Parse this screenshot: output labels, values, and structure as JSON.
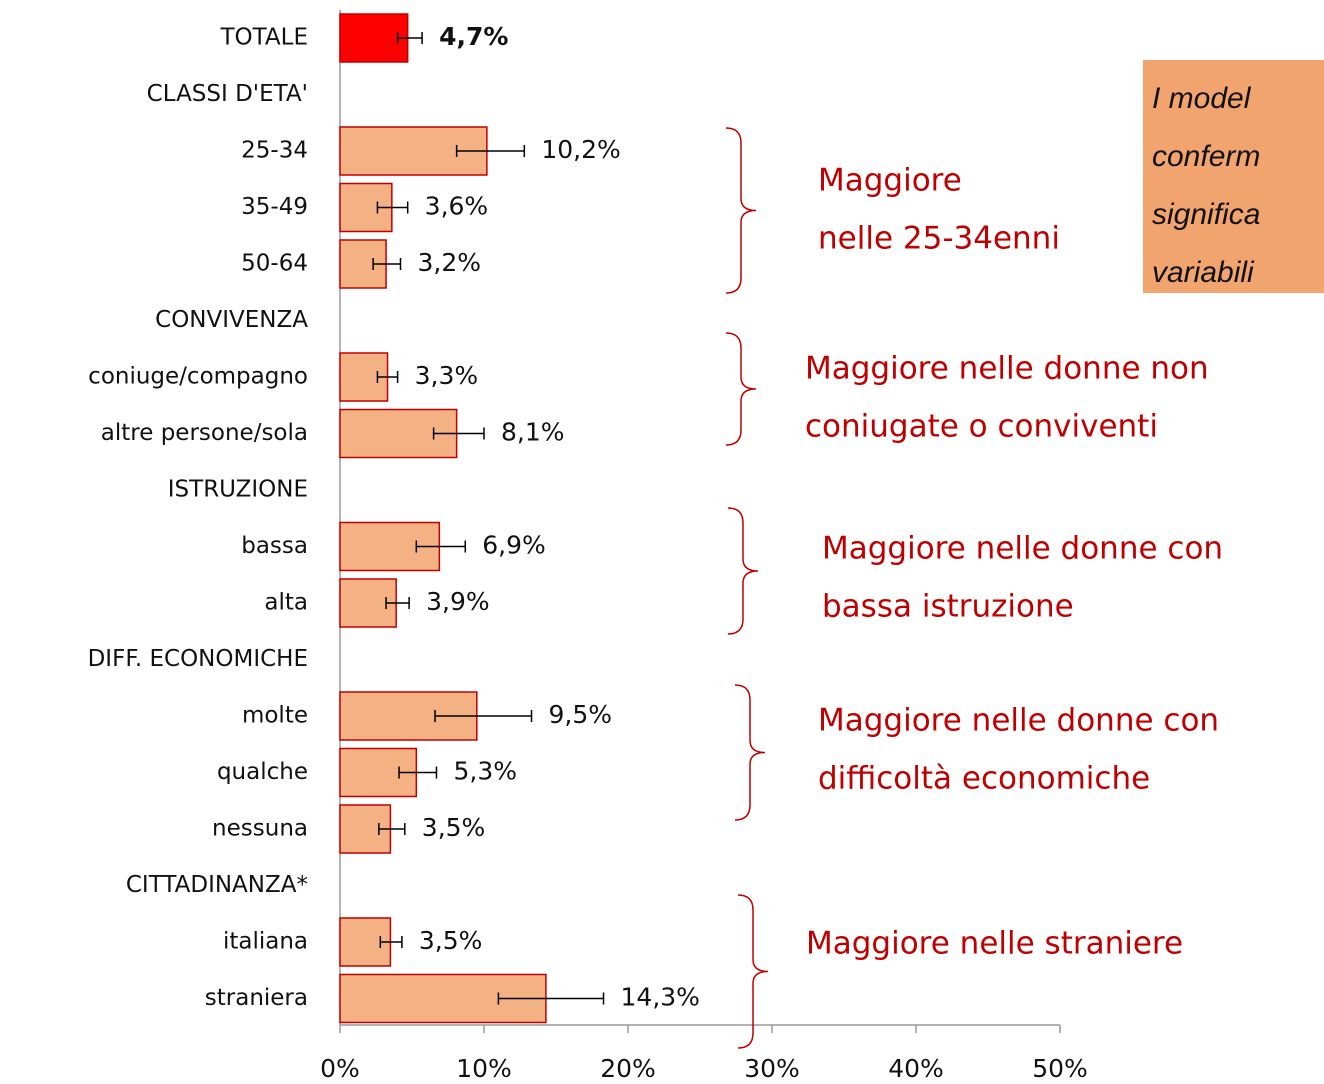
{
  "chart_data": {
    "type": "bar",
    "orientation": "horizontal",
    "categories": [
      "TOTALE",
      "CLASSI D'ETA'",
      "25-34",
      "35-49",
      "50-64",
      "CONVIVENZA",
      "coniuge/compagno",
      "altre persone/sola",
      "ISTRUZIONE",
      "bassa",
      "alta",
      "DIFF. ECONOMICHE",
      "molte",
      "qualche",
      "nessuna",
      "CITTADINANZA*",
      "italiana",
      "straniera"
    ],
    "series": [
      {
        "values": [
          4.7,
          null,
          10.2,
          3.6,
          3.2,
          null,
          3.3,
          8.1,
          null,
          6.9,
          3.9,
          null,
          9.5,
          5.3,
          3.5,
          null,
          3.5,
          14.3
        ],
        "value_labels": [
          "4,7%",
          null,
          "10,2%",
          "3,6%",
          "3,2%",
          null,
          "3,3%",
          "8,1%",
          null,
          "6,9%",
          "3,9%",
          null,
          "9,5%",
          "5,3%",
          "3,5%",
          null,
          "3,5%",
          "14,3%"
        ],
        "ci_low": [
          4.0,
          null,
          8.1,
          2.6,
          2.3,
          null,
          2.6,
          6.5,
          null,
          5.3,
          3.2,
          null,
          6.6,
          4.1,
          2.7,
          null,
          2.8,
          11.0
        ],
        "ci_high": [
          5.7,
          null,
          12.8,
          4.7,
          4.2,
          null,
          4.0,
          10.0,
          null,
          8.7,
          4.8,
          null,
          13.3,
          6.7,
          4.5,
          null,
          4.3,
          18.3
        ],
        "colors": [
          "#ff0000",
          null,
          "#f4b183",
          "#f4b183",
          "#f4b183",
          null,
          "#f4b183",
          "#f4b183",
          null,
          "#f4b183",
          "#f4b183",
          null,
          "#f4b183",
          "#f4b183",
          "#f4b183",
          null,
          "#f4b183",
          "#f4b183"
        ]
      }
    ],
    "bar_border_color": "#c00000",
    "xlim": [
      0,
      50
    ],
    "xticks": [
      {
        "value": 0,
        "label": "0%"
      },
      {
        "value": 10,
        "label": "10%"
      },
      {
        "value": 20,
        "label": "20%"
      },
      {
        "value": 30,
        "label": "30%"
      },
      {
        "value": 40,
        "label": "40%"
      },
      {
        "value": 50,
        "label": "50%"
      }
    ],
    "annotations": [
      {
        "lines": [
          "Maggiore",
          "nelle 25-34enni"
        ]
      },
      {
        "lines": [
          "Maggiore nelle donne non",
          "coniugate o conviventi"
        ]
      },
      {
        "lines": [
          "Maggiore nelle donne con",
          "bassa istruzione"
        ]
      },
      {
        "lines": [
          "Maggiore nelle donne con",
          "difficoltà economiche"
        ]
      },
      {
        "lines": [
          "Maggiore nelle straniere"
        ]
      }
    ],
    "annotation_color": "#c00000",
    "note": {
      "lines": [
        "I model",
        "conferm",
        "significa",
        "variabili"
      ],
      "color": "#f2a46e"
    }
  }
}
